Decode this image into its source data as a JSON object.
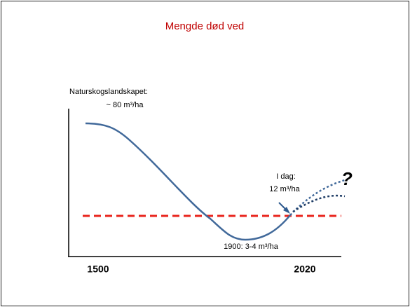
{
  "title": "Mengde død ved",
  "labels": {
    "start_name": "Naturskogslandskapet:",
    "start_value": "~ 80 m³/ha",
    "today_name": "I dag:",
    "today_value": "12 m³/ha",
    "question": "?",
    "minimum": "1900:  3-4 m³/ha"
  },
  "axis": {
    "start": "1500",
    "end": "2020"
  }
}
